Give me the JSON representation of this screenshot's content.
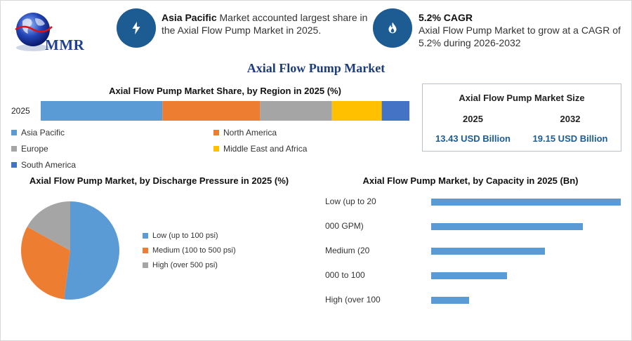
{
  "brand": {
    "logo_text": "MMR"
  },
  "highlights": [
    {
      "icon": "lightning-icon",
      "bold": "Asia Pacific",
      "text": " Market accounted largest share in the Axial Flow Pump Market in 2025."
    },
    {
      "icon": "flame-icon",
      "bold": "5.2% CAGR",
      "text": "Axial Flow Pump Market to grow at a CAGR of 5.2% during 2026-2032"
    }
  ],
  "main_title": "Axial Flow Pump Market",
  "colors": {
    "blue": "#5b9bd5",
    "orange": "#ed7d31",
    "gray": "#a5a5a5",
    "yellow": "#ffc000",
    "dark_blue": "#4472c4",
    "brand": "#1d5b93"
  },
  "chart_data": [
    {
      "type": "bar",
      "orientation": "stacked-horizontal",
      "title": "Axial Flow Pump Market Share, by Region in 2025 (%)",
      "categories": [
        "2025"
      ],
      "series": [
        {
          "name": "Asia Pacific",
          "values": [
            33
          ]
        },
        {
          "name": "North America",
          "values": [
            26.5
          ]
        },
        {
          "name": "Europe",
          "values": [
            19.5
          ]
        },
        {
          "name": "Middle East and Africa",
          "values": [
            13.5
          ]
        },
        {
          "name": "South America",
          "values": [
            7.5
          ]
        }
      ],
      "legend": "bottom"
    },
    {
      "type": "pie",
      "title": "Axial Flow Pump Market, by Discharge Pressure in 2025 (%)",
      "labels": [
        "Low (up to 100 psi)",
        "Medium (100 to 500 psi)",
        "High (over 500 psi)"
      ],
      "values": [
        52,
        31,
        17
      ],
      "legend": "right"
    },
    {
      "type": "bar",
      "orientation": "horizontal",
      "title": "Axial Flow Pump Market, by Capacity in 2025 (Bn)",
      "categories": [
        "Low (up to 20",
        "000 GPM)",
        "Medium (20",
        "000 to 100",
        "High (over 100"
      ],
      "values": [
        100,
        80,
        60,
        40,
        20
      ]
    }
  ],
  "market_size": {
    "title": "Axial Flow Pump Market Size",
    "years": [
      "2025",
      "2032"
    ],
    "values": [
      "13.43 USD Billion",
      "19.15 USD Billion"
    ]
  }
}
